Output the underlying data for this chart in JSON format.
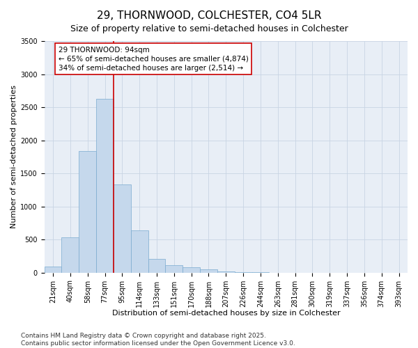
{
  "title": "29, THORNWOOD, COLCHESTER, CO4 5LR",
  "subtitle": "Size of property relative to semi-detached houses in Colchester",
  "xlabel": "Distribution of semi-detached houses by size in Colchester",
  "ylabel": "Number of semi-detached properties",
  "categories": [
    "21sqm",
    "40sqm",
    "58sqm",
    "77sqm",
    "95sqm",
    "114sqm",
    "133sqm",
    "151sqm",
    "170sqm",
    "188sqm",
    "207sqm",
    "226sqm",
    "244sqm",
    "263sqm",
    "281sqm",
    "300sqm",
    "319sqm",
    "337sqm",
    "356sqm",
    "374sqm",
    "393sqm"
  ],
  "values": [
    90,
    530,
    1840,
    2630,
    1330,
    640,
    210,
    115,
    80,
    45,
    20,
    8,
    3,
    2,
    0,
    0,
    0,
    0,
    0,
    0,
    0
  ],
  "bar_color": "#c5d8ec",
  "bar_edge_color": "#7aaacf",
  "vline_color": "#cc0000",
  "annotation_text": "29 THORNWOOD: 94sqm\n← 65% of semi-detached houses are smaller (4,874)\n34% of semi-detached houses are larger (2,514) →",
  "annotation_box_color": "#cc0000",
  "ylim": [
    0,
    3500
  ],
  "yticks": [
    0,
    500,
    1000,
    1500,
    2000,
    2500,
    3000,
    3500
  ],
  "grid_color": "#c8d4e4",
  "background_color": "#e8eef6",
  "footer": "Contains HM Land Registry data © Crown copyright and database right 2025.\nContains public sector information licensed under the Open Government Licence v3.0.",
  "title_fontsize": 11,
  "subtitle_fontsize": 9,
  "label_fontsize": 8,
  "tick_fontsize": 7,
  "footer_fontsize": 6.5,
  "annotation_fontsize": 7.5
}
